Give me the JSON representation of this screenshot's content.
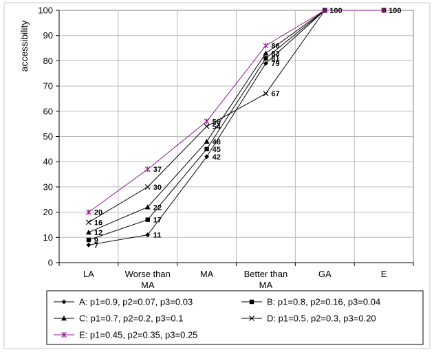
{
  "chart_data": {
    "type": "line",
    "ylabel": "accessibility",
    "xlabel": "",
    "ylim": [
      0,
      100
    ],
    "yticks": [
      0,
      10,
      20,
      30,
      40,
      50,
      60,
      70,
      80,
      90,
      100
    ],
    "categories": [
      [
        "LA"
      ],
      [
        "Worse than",
        "MA"
      ],
      [
        "MA"
      ],
      [
        "Better than",
        "MA"
      ],
      [
        "GA"
      ],
      [
        "E"
      ]
    ],
    "grid": true,
    "legend_position": "bottom",
    "series": [
      {
        "name": "A: p1=0.9, p2=0.07, p3=0.03",
        "marker": "diamond",
        "color": "#000000",
        "values": [
          7,
          11,
          42,
          79,
          100,
          null
        ],
        "labels": [
          7,
          11,
          42,
          79,
          null,
          null
        ]
      },
      {
        "name": "B: p1=0.8, p2=0.16, p3=0.04",
        "marker": "square",
        "color": "#000000",
        "values": [
          9,
          17,
          45,
          81,
          100,
          100
        ],
        "labels": [
          9,
          17,
          45,
          81,
          100,
          100
        ]
      },
      {
        "name": "C: p1=0.7, p2=0.2, p3=0.1",
        "marker": "triangle",
        "color": "#000000",
        "values": [
          12,
          22,
          48,
          83,
          100,
          null
        ],
        "labels": [
          12,
          22,
          48,
          83,
          null,
          null
        ]
      },
      {
        "name": "D: p1=0.5, p2=0.3, p3=0.20",
        "marker": "x",
        "color": "#000000",
        "values": [
          16,
          30,
          54,
          67,
          100,
          null
        ],
        "labels": [
          16,
          30,
          54,
          67,
          null,
          null
        ]
      },
      {
        "name": "E: p1=0.45, p2=0.35, p3=0.25",
        "marker": "star",
        "color": "#8B1A8B",
        "values": [
          20,
          37,
          56,
          86,
          100,
          100
        ],
        "labels": [
          20,
          37,
          56,
          86,
          null,
          null
        ]
      }
    ]
  }
}
